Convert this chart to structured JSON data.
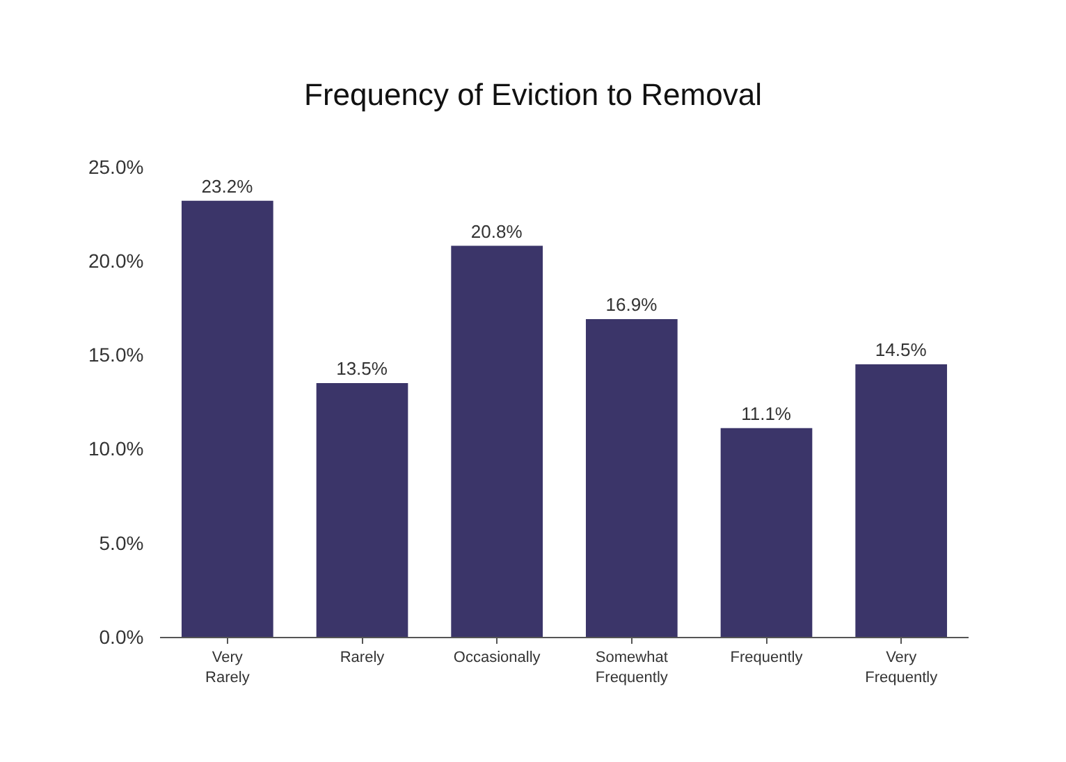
{
  "chart_data": {
    "type": "bar",
    "title": "Frequency of Eviction to Removal",
    "categories": [
      "Very Rarely",
      "Rarely",
      "Occasionally",
      "Somewhat Frequently",
      "Frequently",
      "Very Frequently"
    ],
    "values": [
      23.2,
      13.5,
      20.8,
      16.9,
      11.1,
      14.5
    ],
    "value_labels": [
      "23.2%",
      "13.5%",
      "20.8%",
      "16.9%",
      "11.1%",
      "14.5%"
    ],
    "color": "#3b3569",
    "ylim": [
      0,
      25
    ],
    "yticks": [
      {
        "value": 0,
        "label": "0.0%"
      },
      {
        "value": 5,
        "label": "5.0%"
      },
      {
        "value": 10,
        "label": "10.0%"
      },
      {
        "value": 15,
        "label": "15.0%"
      },
      {
        "value": 20,
        "label": "20.0%"
      },
      {
        "value": 25,
        "label": "25.0%"
      }
    ],
    "grid": false,
    "legend": false
  }
}
